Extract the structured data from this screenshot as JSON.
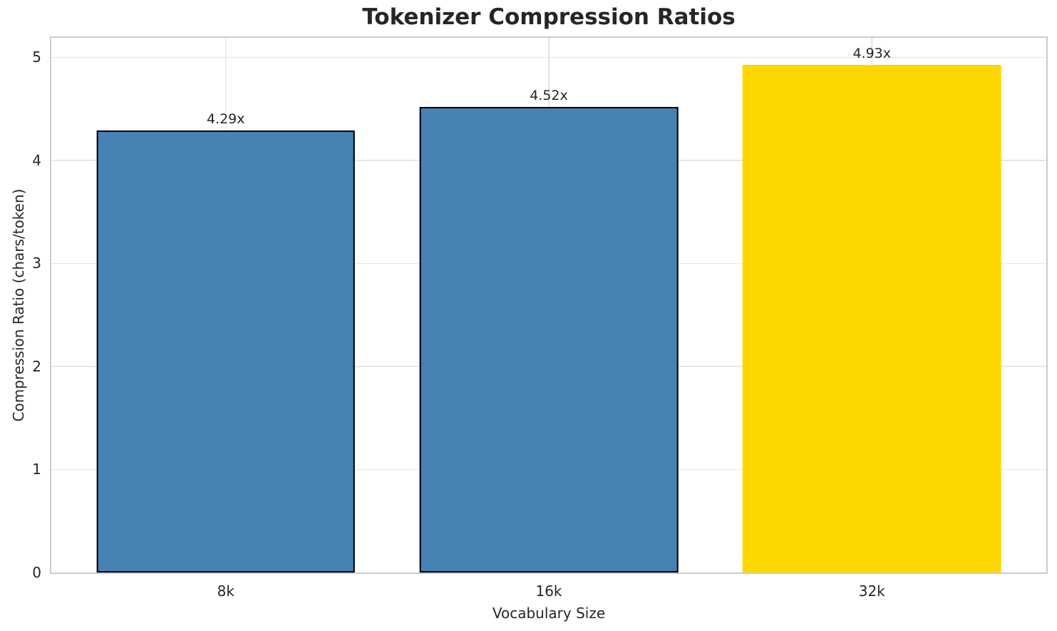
{
  "chart_data": {
    "type": "bar",
    "title": "Tokenizer Compression Ratios",
    "xlabel": "Vocabulary Size",
    "ylabel": "Compression Ratio (chars/token)",
    "categories": [
      "8k",
      "16k",
      "32k"
    ],
    "values": [
      4.29,
      4.52,
      4.93
    ],
    "bar_labels": [
      "4.29x",
      "4.52x",
      "4.93x"
    ],
    "bar_colors": [
      "#4682B4",
      "#4682B4",
      "#FFD700"
    ],
    "bar_edge_colors": [
      "#000000",
      "#000000",
      "none"
    ],
    "yticks": [
      "0",
      "1",
      "2",
      "3",
      "4",
      "5"
    ],
    "ylim": [
      0,
      5.19
    ],
    "grid": true,
    "legend_position": "none",
    "colors": {
      "grid_horizontal": "#e7e7e7",
      "grid_vertical": "#e0e0e0",
      "spine": "#cccccc",
      "text": "#262626",
      "highlight_bar": "#FFD700",
      "default_bar": "#4682B4"
    }
  }
}
